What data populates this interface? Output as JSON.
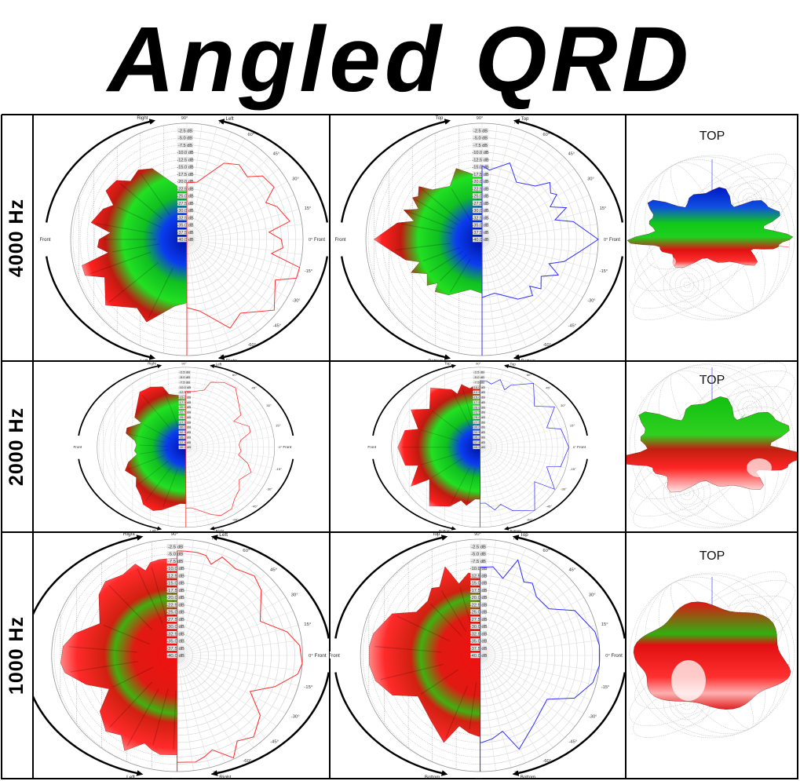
{
  "title": "Angled QRD",
  "rows": [
    {
      "label": "4000 Hz"
    },
    {
      "label": "2000 Hz"
    },
    {
      "label": "1000 Hz"
    }
  ],
  "spheres": [
    {
      "title": "TOP"
    },
    {
      "title": "TOP"
    },
    {
      "title": "TOP"
    }
  ],
  "polar_axes": {
    "db_ticks": [
      "-2.5 dB",
      "-5.0 dB",
      "-7.5 dB",
      "-10.0 dB",
      "-12.5 dB",
      "-15.0 dB",
      "-17.5 dB",
      "-20.0 dB",
      "-22.5 dB",
      "-25.0 dB",
      "-27.5 dB",
      "-30.0 dB",
      "-32.5 dB",
      "-35.0 dB",
      "-37.5 dB",
      "-40.0 dB"
    ],
    "angle_ticks": [
      "90°",
      "75°",
      "60°",
      "45°",
      "30°",
      "15°",
      "0°",
      "-15°",
      "-30°",
      "-45°",
      "-60°",
      "-75°",
      "-90°"
    ],
    "front_label": "Front"
  },
  "colors": {
    "horizontal": "#ff3030",
    "vertical": "#3030ff"
  },
  "chart_data": [
    {
      "type": "polar",
      "frequency": "4000 Hz",
      "plane": "horizontal",
      "rlim": [
        -40,
        0
      ],
      "labels": {
        "top_left": "Right",
        "top_right": "Left",
        "bottom_left": "Left",
        "bottom_right": "Right"
      },
      "points": [
        [
          90,
          -20.5
        ],
        [
          80,
          -20
        ],
        [
          64,
          -10.8
        ],
        [
          55,
          -8.6
        ],
        [
          46,
          -10
        ],
        [
          40,
          -6
        ],
        [
          31,
          -5
        ],
        [
          25,
          -10
        ],
        [
          20,
          -7
        ],
        [
          10,
          -4
        ],
        [
          5,
          -11.6
        ],
        [
          0,
          -7.5
        ],
        [
          -5,
          -6.8
        ],
        [
          -9.5,
          -10.5
        ],
        [
          -14,
          0
        ],
        [
          -19.5,
          0
        ],
        [
          -24.7,
          -6.5
        ],
        [
          -39,
          -1.3
        ],
        [
          -54,
          -8.6
        ],
        [
          -64,
          -6
        ],
        [
          -80,
          -15
        ],
        [
          -90,
          -16.5
        ]
      ]
    },
    {
      "type": "polar",
      "frequency": "4000 Hz",
      "plane": "vertical",
      "rlim": [
        -40,
        0
      ],
      "labels": {
        "top_left": "Top",
        "top_right": "Top",
        "bottom_left": "Bottom",
        "bottom_right": "Bottom"
      },
      "points": [
        [
          90,
          -14.6
        ],
        [
          84,
          -16
        ],
        [
          70,
          -12
        ],
        [
          59,
          -17
        ],
        [
          45,
          -14
        ],
        [
          40,
          -9.5
        ],
        [
          34,
          -11.5
        ],
        [
          31,
          -10
        ],
        [
          25.5,
          -14
        ],
        [
          20.6,
          -9
        ],
        [
          15,
          -14
        ],
        [
          11,
          -8
        ],
        [
          0,
          0
        ],
        [
          -7,
          -6
        ],
        [
          -15,
          -10.7
        ],
        [
          -20,
          -15.5
        ],
        [
          -25,
          -11
        ],
        [
          -32,
          -16
        ],
        [
          -40,
          -13.5
        ],
        [
          -44.5,
          -17
        ],
        [
          -48,
          -14
        ],
        [
          -59,
          -16
        ],
        [
          -77,
          -21
        ],
        [
          -90,
          -20
        ]
      ]
    },
    {
      "type": "polar",
      "frequency": "2000 Hz",
      "plane": "horizontal",
      "rlim": [
        -40,
        0
      ],
      "labels": {
        "top_left": "Right",
        "top_right": "Left",
        "bottom_left": "Left",
        "bottom_right": "Right"
      },
      "points": [
        [
          90,
          -12
        ],
        [
          84,
          -12
        ],
        [
          74,
          -10.3
        ],
        [
          71,
          -5.6
        ],
        [
          62,
          -3.3
        ],
        [
          53,
          -2.8
        ],
        [
          33,
          -10.4
        ],
        [
          31,
          -14.8
        ],
        [
          20,
          -9.6
        ],
        [
          14.5,
          -10
        ],
        [
          8,
          -15
        ],
        [
          3,
          -16
        ],
        [
          -4.5,
          -15
        ],
        [
          -9,
          -16
        ],
        [
          -16,
          -11
        ],
        [
          -23,
          -8
        ],
        [
          -34,
          -11
        ],
        [
          -41,
          -8
        ],
        [
          -50,
          -6
        ],
        [
          -56,
          -3
        ],
        [
          -65,
          -2.4
        ],
        [
          -71,
          -4.4
        ],
        [
          -85,
          -9.6
        ],
        [
          -90,
          -9.6
        ]
      ]
    },
    {
      "type": "polar",
      "frequency": "2000 Hz",
      "plane": "vertical",
      "rlim": [
        -40,
        0
      ],
      "labels": {
        "top_left": "Top",
        "top_right": "Top",
        "bottom_left": "Bottom",
        "bottom_right": "Bottom"
      },
      "points": [
        [
          90,
          -6.7
        ],
        [
          85,
          -6.7
        ],
        [
          81,
          -8
        ],
        [
          75,
          -5
        ],
        [
          69,
          -9.2
        ],
        [
          66,
          -6
        ],
        [
          53,
          0
        ],
        [
          40,
          -8
        ],
        [
          31,
          -0.8
        ],
        [
          18,
          -8.4
        ],
        [
          14,
          -2.4
        ],
        [
          0,
          0
        ],
        [
          -15,
          -2.4
        ],
        [
          -18,
          -8.4
        ],
        [
          -32,
          -0.4
        ],
        [
          -35,
          -10
        ],
        [
          -52,
          0
        ],
        [
          -65,
          -5
        ],
        [
          -72,
          -10
        ],
        [
          -78,
          -8
        ],
        [
          -85,
          -12
        ],
        [
          -90,
          -12
        ]
      ]
    },
    {
      "type": "polar",
      "frequency": "1000 Hz",
      "plane": "horizontal",
      "rlim": [
        -40,
        0
      ],
      "labels": {
        "top_left": "Right",
        "top_right": "Left",
        "bottom_left": "Left",
        "bottom_right": "Right"
      },
      "points": [
        [
          90,
          -4
        ],
        [
          86,
          -4
        ],
        [
          80,
          -4
        ],
        [
          75,
          -4.4
        ],
        [
          71,
          -6.8
        ],
        [
          67,
          -3.2
        ],
        [
          58,
          -4.8
        ],
        [
          48,
          -3.2
        ],
        [
          40,
          -5
        ],
        [
          24,
          -11
        ],
        [
          13,
          -4
        ],
        [
          5,
          -0.8
        ],
        [
          -4,
          0
        ],
        [
          -9.5,
          -1
        ],
        [
          -19,
          -7
        ],
        [
          -28,
          -13.6
        ],
        [
          -38,
          -6.4
        ],
        [
          -49,
          -2.8
        ],
        [
          -57,
          -4.8
        ],
        [
          -63,
          -0.4
        ],
        [
          -71,
          -5.6
        ],
        [
          -76,
          -4
        ],
        [
          -81,
          -2.8
        ],
        [
          -88,
          -3.2
        ],
        [
          -90,
          -3.2
        ]
      ]
    },
    {
      "type": "polar",
      "frequency": "1000 Hz",
      "plane": "vertical",
      "rlim": [
        -40,
        0
      ],
      "labels": {
        "top_left": "Top",
        "top_right": "Top",
        "bottom_left": "Bottom",
        "bottom_right": "Bottom"
      },
      "points": [
        [
          90,
          -9.6
        ],
        [
          88,
          -9.6
        ],
        [
          82,
          -9.2
        ],
        [
          74,
          -12.4
        ],
        [
          69,
          -4.8
        ],
        [
          60,
          -10.8
        ],
        [
          55,
          -9.6
        ],
        [
          47,
          -12.4
        ],
        [
          35,
          -12
        ],
        [
          26,
          -4.8
        ],
        [
          12,
          -0.8
        ],
        [
          5,
          0
        ],
        [
          -5,
          0
        ],
        [
          -14,
          -1.2
        ],
        [
          -25,
          -5.2
        ],
        [
          -34,
          -13
        ],
        [
          -54,
          -10
        ],
        [
          -68,
          -5.2
        ],
        [
          -74,
          -12.8
        ],
        [
          -82,
          -11
        ],
        [
          -89,
          -10
        ],
        [
          -90,
          -10
        ]
      ]
    }
  ]
}
